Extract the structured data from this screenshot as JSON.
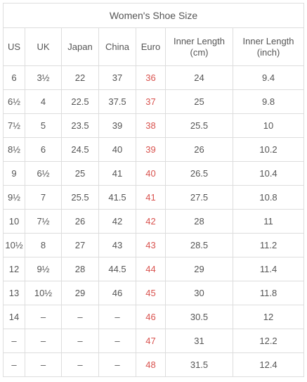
{
  "title": "Women's Shoe Size",
  "columns": [
    "US",
    "UK",
    "Japan",
    "China",
    "Euro",
    "Inner Length\n(cm)",
    "Inner Length\n(inch)"
  ],
  "column_lines": [
    [
      "US"
    ],
    [
      "UK"
    ],
    [
      "Japan"
    ],
    [
      "China"
    ],
    [
      "Euro"
    ],
    [
      "Inner Length",
      "(cm)"
    ],
    [
      "Inner Length",
      "(inch)"
    ]
  ],
  "rows": [
    [
      "6",
      "3½",
      "22",
      "37",
      "36",
      "24",
      "9.4"
    ],
    [
      "6½",
      "4",
      "22.5",
      "37.5",
      "37",
      "25",
      "9.8"
    ],
    [
      "7½",
      "5",
      "23.5",
      "39",
      "38",
      "25.5",
      "10"
    ],
    [
      "8½",
      "6",
      "24.5",
      "40",
      "39",
      "26",
      "10.2"
    ],
    [
      "9",
      "6½",
      "25",
      "41",
      "40",
      "26.5",
      "10.4"
    ],
    [
      "9½",
      "7",
      "25.5",
      "41.5",
      "41",
      "27.5",
      "10.8"
    ],
    [
      "10",
      "7½",
      "26",
      "42",
      "42",
      "28",
      "11"
    ],
    [
      "10½",
      "8",
      "27",
      "43",
      "43",
      "28.5",
      "11.2"
    ],
    [
      "12",
      "9½",
      "28",
      "44.5",
      "44",
      "29",
      "11.4"
    ],
    [
      "13",
      "10½",
      "29",
      "46",
      "45",
      "30",
      "11.8"
    ],
    [
      "14",
      "–",
      "–",
      "–",
      "46",
      "30.5",
      "12"
    ],
    [
      "–",
      "–",
      "–",
      "–",
      "47",
      "31",
      "12.2"
    ],
    [
      "–",
      "–",
      "–",
      "–",
      "48",
      "31.5",
      "12.4"
    ]
  ],
  "colors": {
    "text": "#555555",
    "euro_accent": "#d9534f",
    "border": "#dddddd",
    "background": "#ffffff"
  }
}
